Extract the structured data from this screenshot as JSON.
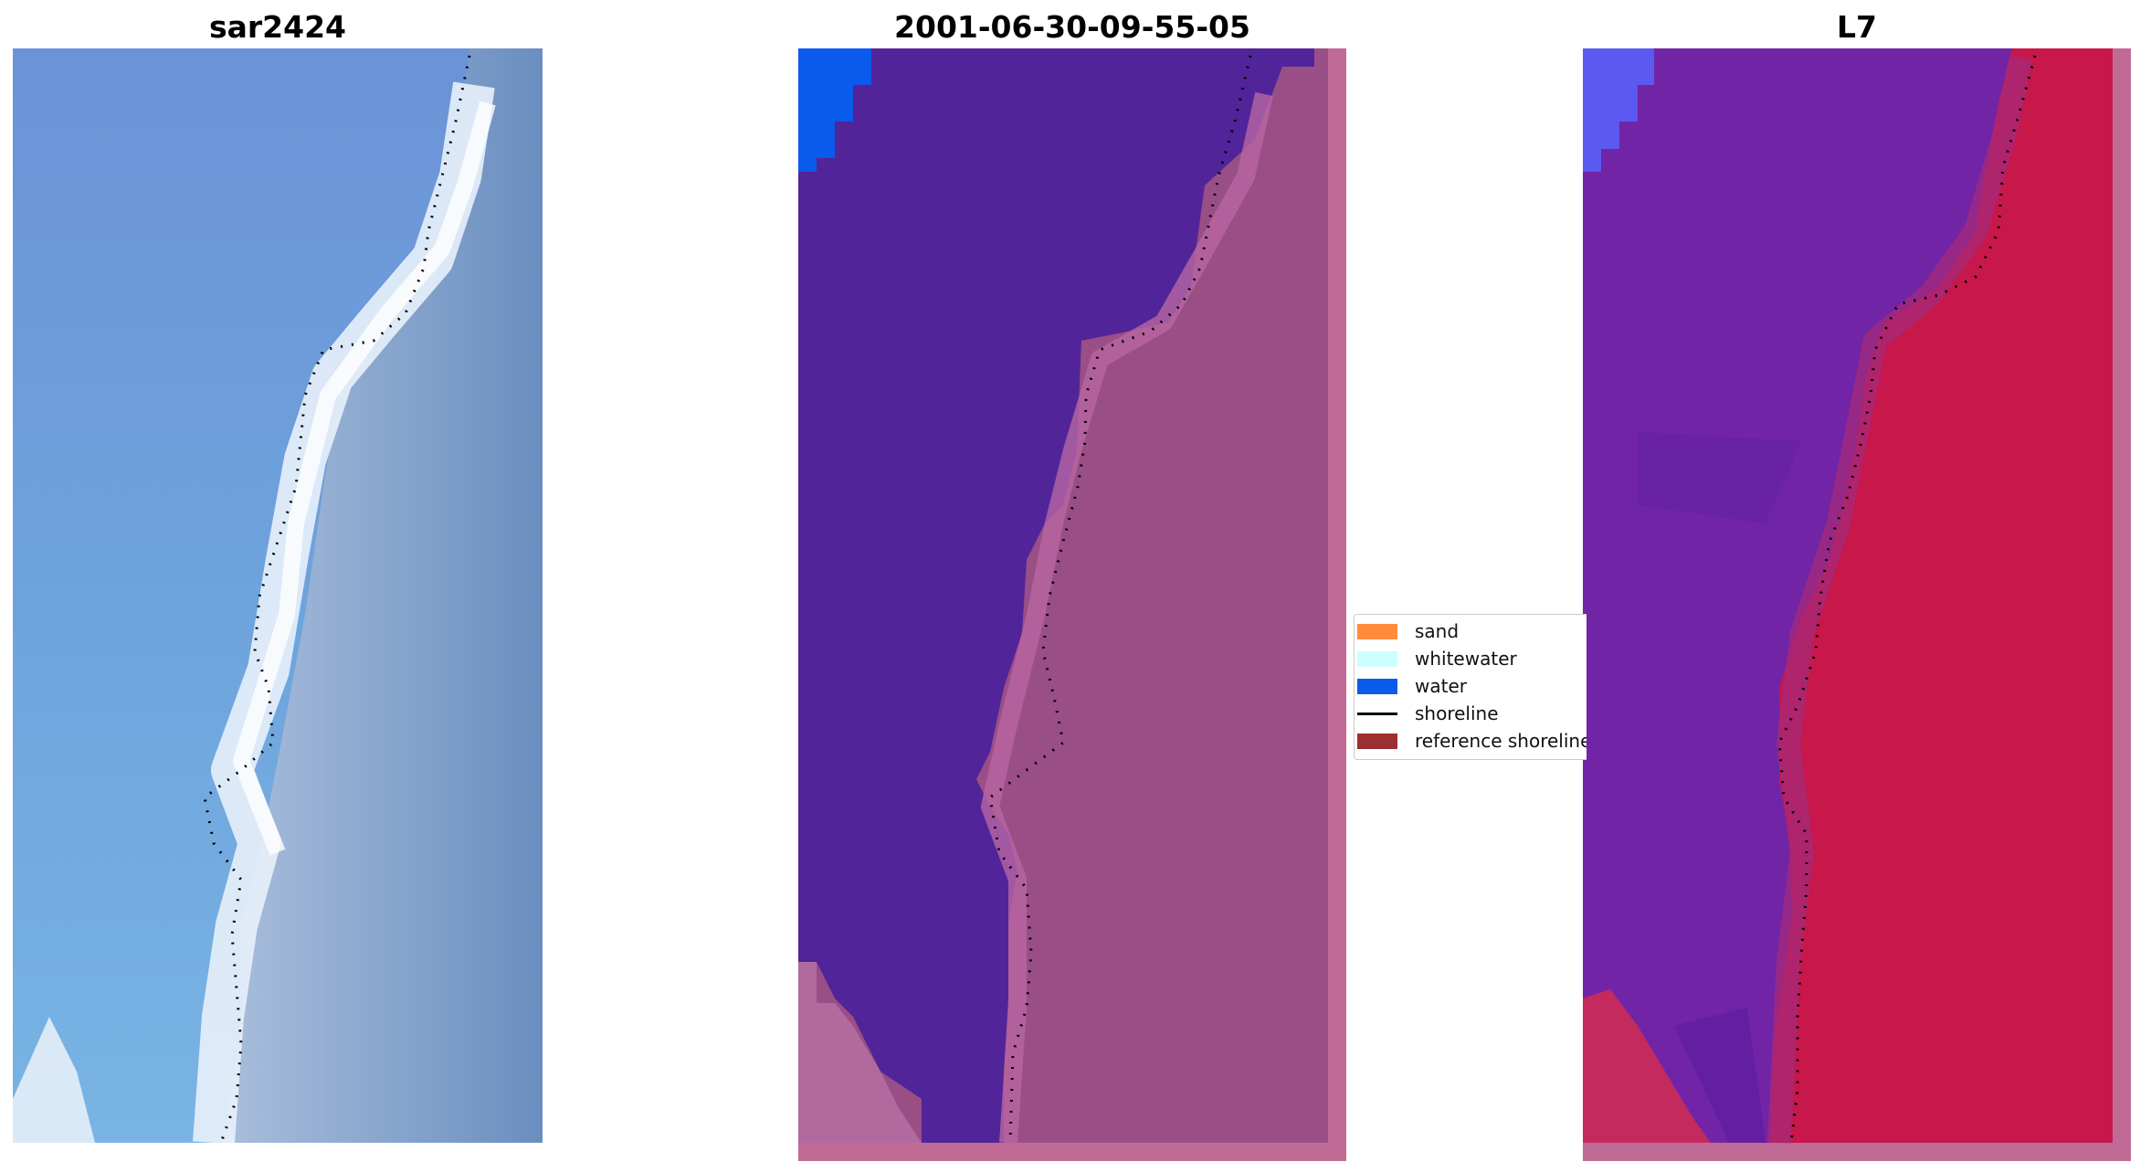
{
  "panels": [
    {
      "id": "left",
      "title": "sar2424"
    },
    {
      "id": "middle",
      "title": "2001-06-30-09-55-05"
    },
    {
      "id": "right",
      "title": "L7"
    }
  ],
  "legend": {
    "items": [
      {
        "label": "sand",
        "color": "#ff8c3a",
        "kind": "patch"
      },
      {
        "label": "whitewater",
        "color": "#ccffff",
        "kind": "patch"
      },
      {
        "label": "water",
        "color": "#0a5aeb",
        "kind": "patch"
      },
      {
        "label": "shoreline",
        "color": "#000000",
        "kind": "line"
      },
      {
        "label": "reference shoreline",
        "color": "#9b3030",
        "kind": "patch"
      }
    ]
  },
  "colors": {
    "sea_blue": "#6e9ad6",
    "surf_white": "#eef4fb",
    "land_grey_blue": "#8aa3c8",
    "classified_water": "#52249a",
    "classified_land": "#a45a96",
    "mndwi_water": "#7224a6",
    "mndwi_land": "#c8174a",
    "frame_pink": "#c06a96"
  }
}
